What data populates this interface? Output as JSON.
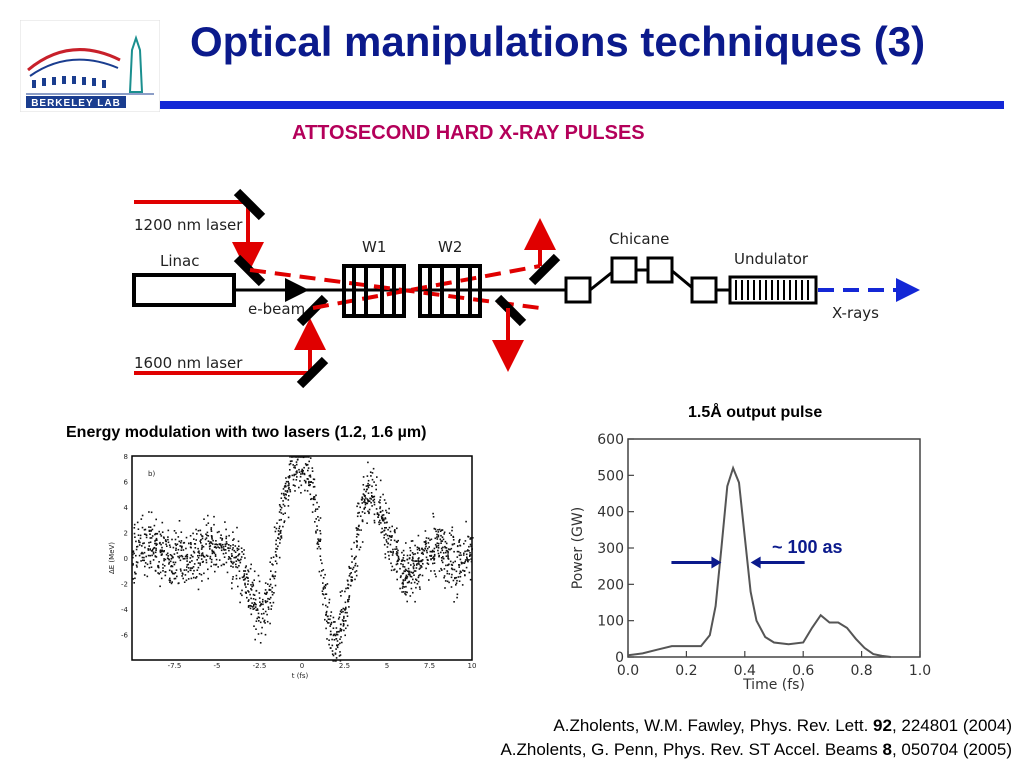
{
  "logo": {
    "text": "BERKELEY LAB"
  },
  "title": "Optical manipulations techniques (3)",
  "subtitle": "ATTOSECOND HARD X-RAY PULSES",
  "diagram": {
    "laser1": "1200 nm laser",
    "laser2": "1600 nm laser",
    "linac": "Linac",
    "ebeam": "e-beam",
    "w1": "W1",
    "w2": "W2",
    "chicane": "Chicane",
    "undulator": "Undulator",
    "xrays": "X-rays"
  },
  "left_panel": {
    "title": "Energy modulation with two lasers (1.2, 1.6 µm)"
  },
  "right_panel": {
    "title": "1.5Å output pulse"
  },
  "chart_data": [
    {
      "type": "scatter",
      "panel_label": "b)",
      "xlabel": "t (fs)",
      "ylabel": "ΔE (MeV)",
      "xlim": [
        -10,
        10
      ],
      "ylim": [
        -8,
        8
      ],
      "xticks": [
        "-7.5",
        "-5",
        "-2.5",
        "0",
        "2.5",
        "5",
        "7.5",
        "10"
      ],
      "yticks": [
        "8",
        "6",
        "4",
        "2",
        "0",
        "-2",
        "-4",
        "-6"
      ],
      "envelope": {
        "t": [
          -10,
          -9,
          -8,
          -7,
          -6,
          -5,
          -4,
          -3,
          -2.5,
          -2,
          -1.5,
          -1,
          -0.5,
          0,
          0.5,
          1,
          1.5,
          2,
          2.5,
          3,
          3.5,
          4,
          5,
          6,
          7,
          8,
          9,
          10
        ],
        "dE": [
          0.5,
          1.0,
          0.5,
          0.0,
          0.5,
          1.0,
          0.0,
          -3.0,
          -4.5,
          -3.0,
          1.0,
          5.0,
          7.5,
          8.0,
          6.0,
          1.0,
          -5.0,
          -6.8,
          -4.0,
          0.0,
          4.0,
          5.5,
          2.0,
          -1.5,
          0.0,
          1.0,
          -0.5,
          1.0
        ]
      }
    },
    {
      "type": "line",
      "xlabel": "Time (fs)",
      "ylabel": "Power (GW)",
      "xlim": [
        0,
        1.0
      ],
      "ylim": [
        0,
        600
      ],
      "xticks": [
        "0.0",
        "0.2",
        "0.4",
        "0.6",
        "0.8",
        "1.0"
      ],
      "yticks": [
        "0",
        "100",
        "200",
        "300",
        "400",
        "500",
        "600"
      ],
      "x": [
        0.0,
        0.05,
        0.1,
        0.15,
        0.2,
        0.25,
        0.28,
        0.3,
        0.32,
        0.34,
        0.36,
        0.38,
        0.4,
        0.42,
        0.44,
        0.47,
        0.5,
        0.55,
        0.6,
        0.63,
        0.66,
        0.69,
        0.72,
        0.75,
        0.78,
        0.81,
        0.84,
        0.87,
        0.9
      ],
      "y": [
        5,
        10,
        20,
        30,
        30,
        30,
        60,
        140,
        300,
        470,
        520,
        480,
        330,
        180,
        100,
        55,
        40,
        35,
        40,
        80,
        115,
        95,
        95,
        80,
        50,
        25,
        8,
        3,
        0
      ],
      "annotation": "~ 100 as",
      "annotation_width_fs": [
        0.32,
        0.42
      ]
    }
  ],
  "references": {
    "ref1_pre": "A.Zholents, W.M. Fawley, Phys. Rev. Lett. ",
    "ref1_vol": "92",
    "ref1_post": ", 224801 (2004)",
    "ref2_pre": "A.Zholents, G. Penn, Phys. Rev. ST Accel. Beams ",
    "ref2_vol": "8",
    "ref2_post": ", 050704 (2005)"
  },
  "colors": {
    "title": "#0b1a8c",
    "rule": "#1428d6",
    "subtitle": "#b4005a",
    "laser": "#e00000",
    "xray": "#1428d6"
  }
}
